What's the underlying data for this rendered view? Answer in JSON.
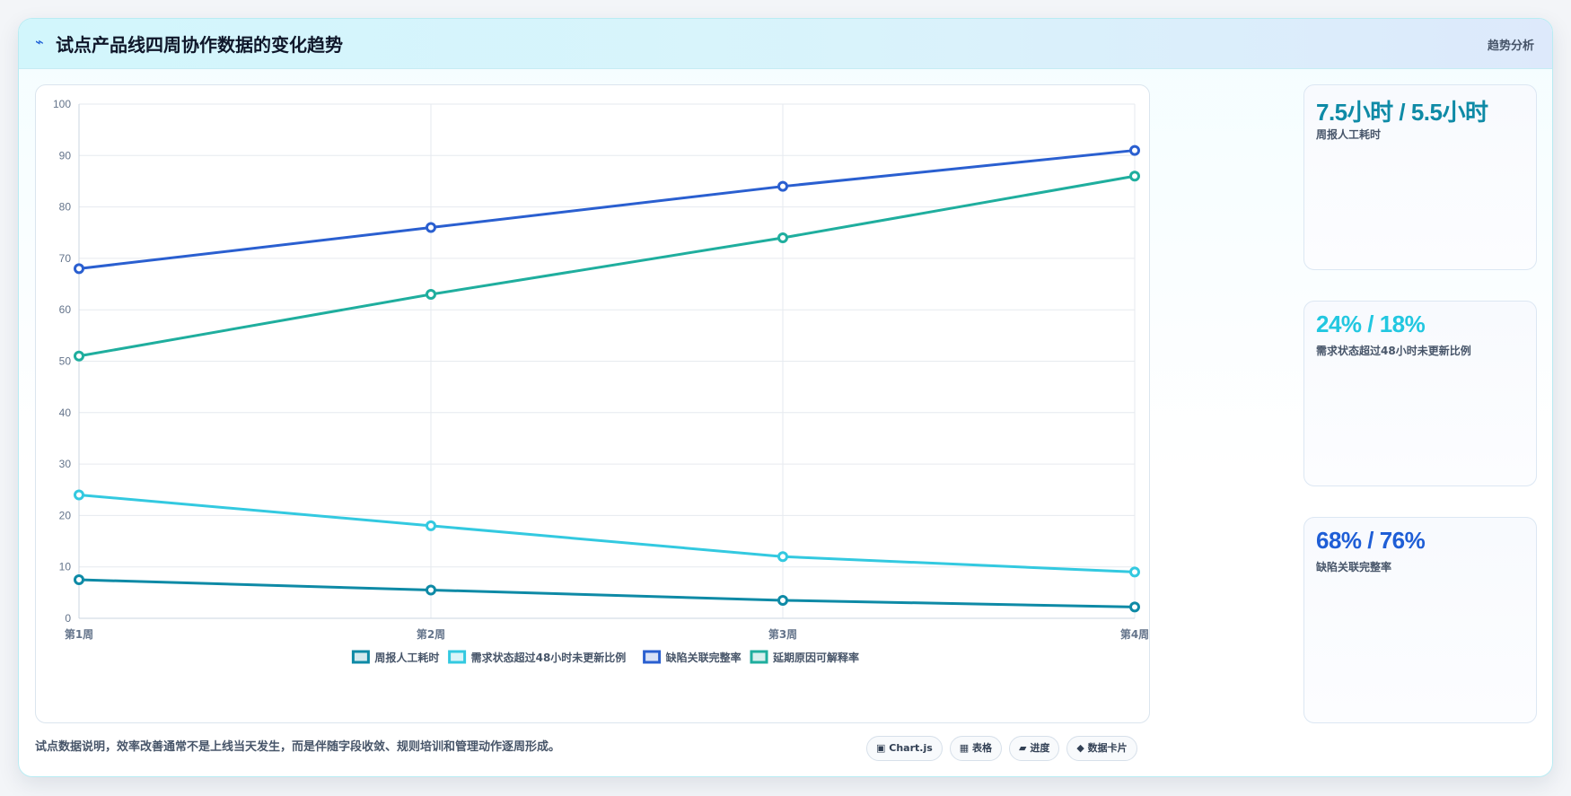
{
  "header": {
    "icon": "⌁",
    "title": "试点产品线四周协作数据的变化趋势",
    "tag": "趋势分析"
  },
  "kpis": [
    {
      "value": "7.5小时 / 5.5小时",
      "label": "周报人工耗时",
      "color": "#0e8aa6"
    },
    {
      "value": "24% / 18%",
      "label": "需求状态超过48小时未更新比例",
      "color": "#22c7e0"
    },
    {
      "value": "68% / 76%",
      "label": "缺陷关联完整率",
      "color": "#1f5ed6"
    }
  ],
  "footer": {
    "note": "试点数据说明，效率改善通常不是上线当天发生，而是伴随字段收敛、规则培训和管理动作逐周形成。",
    "chips": [
      {
        "icon": "▣",
        "label": "Chart.js"
      },
      {
        "icon": "▦",
        "label": "表格"
      },
      {
        "icon": "▰",
        "label": "进度"
      },
      {
        "icon": "◆",
        "label": "数据卡片"
      }
    ]
  },
  "chart_data": {
    "type": "line",
    "categories": [
      "第1周",
      "第2周",
      "第3周",
      "第4周"
    ],
    "ylim": [
      0,
      100
    ],
    "yticks": [
      0,
      10,
      20,
      30,
      40,
      50,
      60,
      70,
      80,
      90,
      100
    ],
    "grid": true,
    "legend": "bottom",
    "series": [
      {
        "name": "周报人工耗时",
        "values": [
          7.5,
          5.5,
          3.5,
          2.2
        ],
        "color": "#0e8aa6"
      },
      {
        "name": "需求状态超过48小时未更新比例",
        "values": [
          24,
          18,
          12,
          9
        ],
        "color": "#33c9e0"
      },
      {
        "name": "缺陷关联完整率",
        "values": [
          68,
          76,
          84,
          91
        ],
        "color": "#2a5fd0"
      },
      {
        "name": "延期原因可解释率",
        "values": [
          51,
          63,
          74,
          86
        ],
        "color": "#1fae9e"
      }
    ]
  }
}
